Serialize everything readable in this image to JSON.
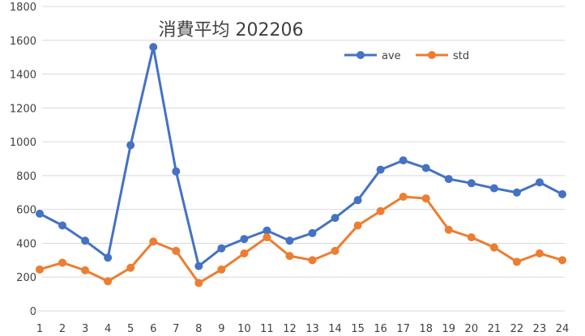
{
  "chart_data": {
    "type": "line",
    "title": "消費平均 202206",
    "xlabel": "",
    "ylabel": "",
    "x": [
      1,
      2,
      3,
      4,
      5,
      6,
      7,
      8,
      9,
      10,
      11,
      12,
      13,
      14,
      15,
      16,
      17,
      18,
      19,
      20,
      21,
      22,
      23,
      24
    ],
    "ylim": [
      0,
      1800
    ],
    "yticks": [
      0,
      200,
      400,
      600,
      800,
      1000,
      1200,
      1400,
      1600,
      1800
    ],
    "grid": true,
    "legend_position": "top-right",
    "series": [
      {
        "name": "ave",
        "color": "#4472C4",
        "values": [
          575,
          505,
          415,
          315,
          980,
          1560,
          825,
          265,
          370,
          425,
          475,
          415,
          460,
          550,
          655,
          835,
          890,
          845,
          780,
          755,
          725,
          700,
          760,
          690
        ]
      },
      {
        "name": "std",
        "color": "#ED7D31",
        "values": [
          245,
          285,
          240,
          175,
          255,
          410,
          355,
          165,
          245,
          340,
          435,
          325,
          300,
          355,
          505,
          590,
          675,
          665,
          480,
          435,
          375,
          290,
          340,
          300
        ]
      }
    ]
  }
}
